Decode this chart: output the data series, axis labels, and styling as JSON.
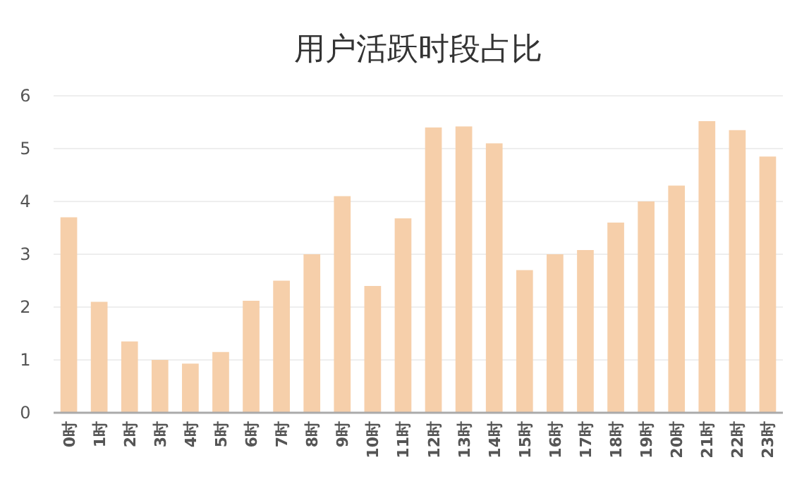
{
  "chart_data": {
    "type": "bar",
    "title": "用户活跃时段占比",
    "categories": [
      "0时",
      "1时",
      "2时",
      "3时",
      "4时",
      "5时",
      "6时",
      "7时",
      "8时",
      "9时",
      "10时",
      "11时",
      "12时",
      "13时",
      "14时",
      "15时",
      "16时",
      "17时",
      "18时",
      "19时",
      "20时",
      "21时",
      "22时",
      "23时"
    ],
    "values": [
      3.7,
      2.1,
      1.35,
      1.0,
      0.93,
      1.15,
      2.12,
      2.5,
      3.0,
      4.1,
      2.4,
      3.68,
      5.4,
      5.42,
      5.1,
      2.7,
      3.0,
      3.08,
      3.6,
      4.0,
      4.3,
      5.52,
      5.35,
      4.85
    ],
    "color": "#f6cfaa",
    "ylim": [
      0,
      6
    ],
    "yticks": [
      0,
      1,
      2,
      3,
      4,
      5,
      6
    ],
    "grid": "y"
  }
}
